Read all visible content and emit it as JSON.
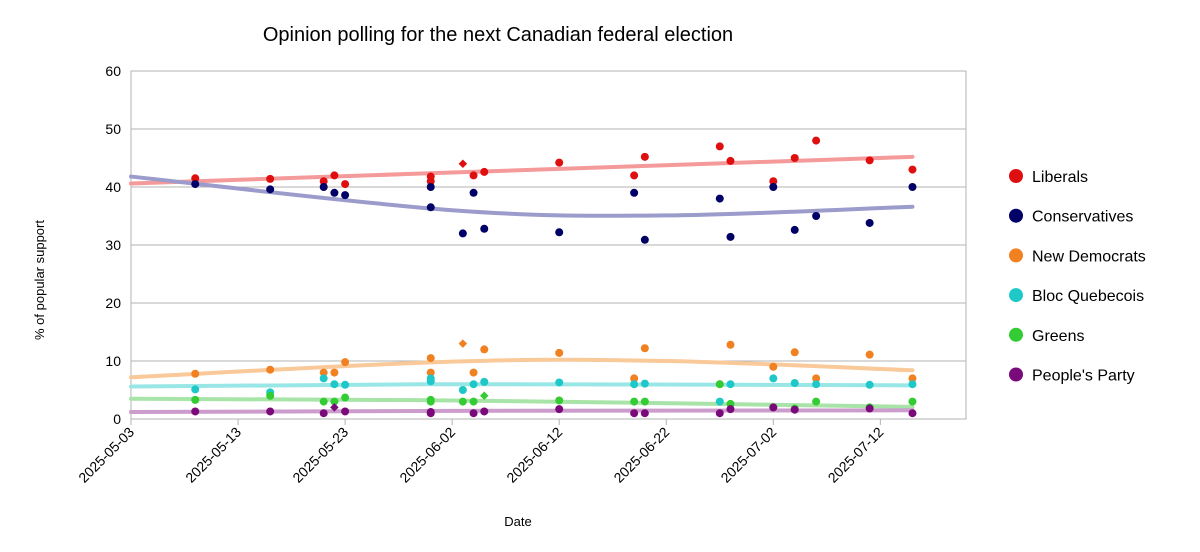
{
  "chart_data": {
    "type": "scatter",
    "title": "Opinion polling for the next Canadian federal election",
    "xlabel": "Date",
    "ylabel": "% of popular support",
    "x_axis": {
      "type": "date",
      "range": [
        "2025-05-03",
        "2025-07-20"
      ],
      "ticks": [
        "2025-05-03",
        "2025-05-13",
        "2025-05-23",
        "2025-06-02",
        "2025-06-12",
        "2025-06-22",
        "2025-07-02",
        "2025-07-12"
      ]
    },
    "ylim": [
      0,
      60
    ],
    "y_ticks": [
      0,
      10,
      20,
      30,
      40,
      50,
      60
    ],
    "grid": "horizontal",
    "legend_position": "right",
    "series": [
      {
        "name": "Liberals",
        "color": "#e00f0f",
        "trend_color": "#f59a9a",
        "trend": [
          [
            "2025-05-03",
            40.6
          ],
          [
            "2025-06-02",
            42.5
          ],
          [
            "2025-07-15",
            45.2
          ]
        ],
        "points": [
          [
            "2025-05-09",
            41.5
          ],
          [
            "2025-05-16",
            41.4
          ],
          [
            "2025-05-21",
            41
          ],
          [
            "2025-05-22",
            42
          ],
          [
            "2025-05-23",
            40.5
          ],
          [
            "2025-05-31",
            41.8
          ],
          [
            "2025-05-31",
            41
          ],
          [
            "2025-06-03",
            44,
            "diamond"
          ],
          [
            "2025-06-04",
            42
          ],
          [
            "2025-06-05",
            42.6
          ],
          [
            "2025-06-12",
            44.2
          ],
          [
            "2025-06-19",
            42
          ],
          [
            "2025-06-20",
            45.2
          ],
          [
            "2025-06-27",
            47
          ],
          [
            "2025-06-28",
            44.5
          ],
          [
            "2025-07-02",
            41
          ],
          [
            "2025-07-04",
            45
          ],
          [
            "2025-07-06",
            48
          ],
          [
            "2025-07-11",
            44.6
          ],
          [
            "2025-07-15",
            43
          ]
        ]
      },
      {
        "name": "Conservatives",
        "color": "#000066",
        "trend_color": "#9b9ccc",
        "trend": [
          [
            "2025-05-03",
            41.8
          ],
          [
            "2025-06-02",
            36.0
          ],
          [
            "2025-06-22",
            35.1
          ],
          [
            "2025-07-15",
            36.6
          ]
        ],
        "points": [
          [
            "2025-05-09",
            40.5
          ],
          [
            "2025-05-16",
            39.6
          ],
          [
            "2025-05-21",
            40
          ],
          [
            "2025-05-22",
            39
          ],
          [
            "2025-05-23",
            38.6
          ],
          [
            "2025-05-31",
            36.5
          ],
          [
            "2025-05-31",
            40
          ],
          [
            "2025-06-03",
            32
          ],
          [
            "2025-06-04",
            39
          ],
          [
            "2025-06-05",
            32.8
          ],
          [
            "2025-06-12",
            32.2
          ],
          [
            "2025-06-19",
            39
          ],
          [
            "2025-06-20",
            30.9
          ],
          [
            "2025-06-27",
            38
          ],
          [
            "2025-06-28",
            31.4
          ],
          [
            "2025-07-02",
            40
          ],
          [
            "2025-07-04",
            32.6
          ],
          [
            "2025-07-06",
            35
          ],
          [
            "2025-07-11",
            33.8
          ],
          [
            "2025-07-15",
            40
          ]
        ]
      },
      {
        "name": "New Democrats",
        "color": "#f08020",
        "trend_color": "#f9c999",
        "trend": [
          [
            "2025-05-03",
            7.2
          ],
          [
            "2025-06-02",
            9.9
          ],
          [
            "2025-06-22",
            10.0
          ],
          [
            "2025-07-15",
            8.4
          ]
        ],
        "points": [
          [
            "2025-05-09",
            7.8
          ],
          [
            "2025-05-16",
            8.5
          ],
          [
            "2025-05-21",
            8
          ],
          [
            "2025-05-22",
            8
          ],
          [
            "2025-05-23",
            9.8
          ],
          [
            "2025-05-31",
            10.5
          ],
          [
            "2025-05-31",
            8
          ],
          [
            "2025-06-03",
            13,
            "diamond"
          ],
          [
            "2025-06-04",
            8
          ],
          [
            "2025-06-05",
            12
          ],
          [
            "2025-06-12",
            11.4
          ],
          [
            "2025-06-19",
            7
          ],
          [
            "2025-06-20",
            12.2
          ],
          [
            "2025-06-27",
            6
          ],
          [
            "2025-06-28",
            12.8
          ],
          [
            "2025-07-02",
            9
          ],
          [
            "2025-07-04",
            11.5
          ],
          [
            "2025-07-06",
            7
          ],
          [
            "2025-07-11",
            11.1
          ],
          [
            "2025-07-15",
            7
          ]
        ]
      },
      {
        "name": "Bloc Quebecois",
        "color": "#1ec8c8",
        "trend_color": "#99e6e6",
        "trend": [
          [
            "2025-05-03",
            5.6
          ],
          [
            "2025-06-02",
            6.0
          ],
          [
            "2025-07-15",
            5.8
          ]
        ],
        "points": [
          [
            "2025-05-09",
            5.1
          ],
          [
            "2025-05-16",
            4.6
          ],
          [
            "2025-05-21",
            7
          ],
          [
            "2025-05-22",
            6
          ],
          [
            "2025-05-23",
            5.9
          ],
          [
            "2025-05-31",
            6.5
          ],
          [
            "2025-05-31",
            7
          ],
          [
            "2025-06-03",
            5
          ],
          [
            "2025-06-04",
            6
          ],
          [
            "2025-06-05",
            6.4
          ],
          [
            "2025-06-12",
            6.3
          ],
          [
            "2025-06-19",
            6
          ],
          [
            "2025-06-20",
            6.1
          ],
          [
            "2025-06-27",
            3
          ],
          [
            "2025-06-28",
            6
          ],
          [
            "2025-07-02",
            7
          ],
          [
            "2025-07-04",
            6.2
          ],
          [
            "2025-07-06",
            6
          ],
          [
            "2025-07-11",
            5.9
          ],
          [
            "2025-07-15",
            6
          ]
        ]
      },
      {
        "name": "Greens",
        "color": "#33cc33",
        "trend_color": "#a8e4a8",
        "trend": [
          [
            "2025-05-03",
            3.5
          ],
          [
            "2025-06-02",
            3.2
          ],
          [
            "2025-07-15",
            2.1
          ]
        ],
        "points": [
          [
            "2025-05-09",
            3.3
          ],
          [
            "2025-05-16",
            4
          ],
          [
            "2025-05-21",
            3
          ],
          [
            "2025-05-22",
            3
          ],
          [
            "2025-05-23",
            3.7
          ],
          [
            "2025-05-31",
            3.3
          ],
          [
            "2025-05-31",
            3
          ],
          [
            "2025-06-03",
            3
          ],
          [
            "2025-06-04",
            3
          ],
          [
            "2025-06-05",
            4,
            "diamond"
          ],
          [
            "2025-06-12",
            3.2
          ],
          [
            "2025-06-19",
            3
          ],
          [
            "2025-06-20",
            3
          ],
          [
            "2025-06-27",
            6
          ],
          [
            "2025-06-28",
            2.6
          ],
          [
            "2025-07-02",
            2
          ],
          [
            "2025-07-04",
            1.8
          ],
          [
            "2025-07-06",
            3
          ],
          [
            "2025-07-11",
            2
          ],
          [
            "2025-07-15",
            3
          ]
        ]
      },
      {
        "name": "People's Party",
        "color": "#7a0a7a",
        "trend_color": "#cc9ccc",
        "trend": [
          [
            "2025-05-03",
            1.2
          ],
          [
            "2025-06-02",
            1.4
          ],
          [
            "2025-07-15",
            1.5
          ]
        ],
        "points": [
          [
            "2025-05-09",
            1.3
          ],
          [
            "2025-05-16",
            1.3
          ],
          [
            "2025-05-21",
            1
          ],
          [
            "2025-05-22",
            2,
            "diamond"
          ],
          [
            "2025-05-23",
            1.3
          ],
          [
            "2025-05-31",
            1.2
          ],
          [
            "2025-05-31",
            1
          ],
          [
            "2025-06-04",
            1
          ],
          [
            "2025-06-05",
            1.3
          ],
          [
            "2025-06-12",
            1.7
          ],
          [
            "2025-06-19",
            1
          ],
          [
            "2025-06-20",
            1
          ],
          [
            "2025-06-27",
            1
          ],
          [
            "2025-06-28",
            1.7
          ],
          [
            "2025-07-02",
            2
          ],
          [
            "2025-07-04",
            1.6
          ],
          [
            "2025-07-11",
            1.8
          ],
          [
            "2025-07-15",
            1
          ]
        ]
      }
    ]
  }
}
